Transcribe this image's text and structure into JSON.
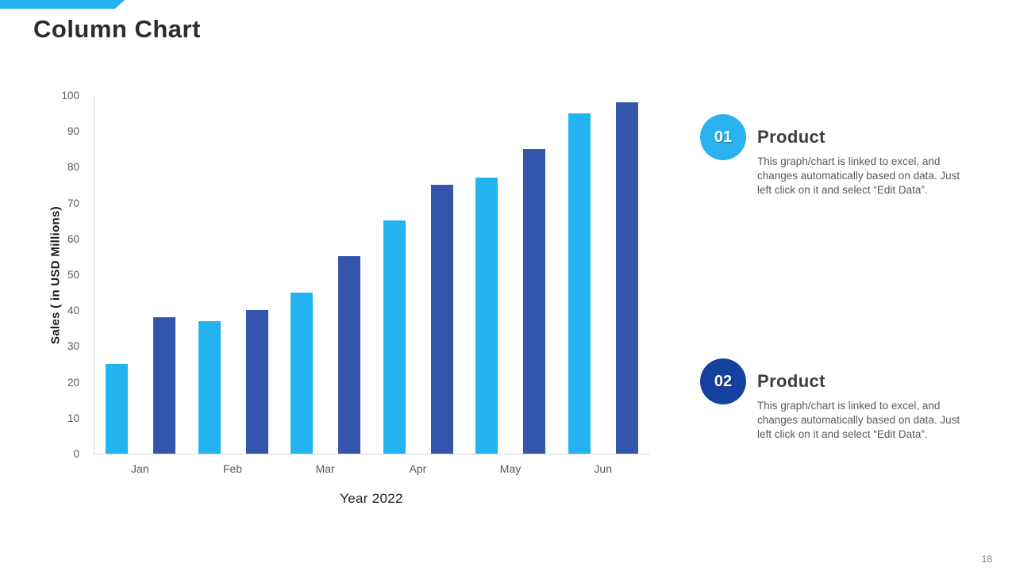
{
  "slide": {
    "title": "Column Chart",
    "page_number": "18",
    "accent_color": "#22B2EE"
  },
  "chart_data": {
    "type": "bar",
    "title": "",
    "categories": [
      "Jan",
      "Feb",
      "Mar",
      "Apr",
      "May",
      "Jun"
    ],
    "series": [
      {
        "name": "Product 01",
        "color": "#22B3F0",
        "values": [
          25,
          37,
          45,
          65,
          77,
          95
        ]
      },
      {
        "name": "Product 02",
        "color": "#3356AC",
        "values": [
          38,
          40,
          55,
          75,
          85,
          98
        ]
      }
    ],
    "xlabel": "Year 2022",
    "ylabel": "Sales ( in USD Millions)",
    "ylim": [
      0,
      100
    ],
    "ytick_step": 10,
    "grid": false,
    "legend_position": "none"
  },
  "info_items": [
    {
      "number": "01",
      "color": "#29B2EF",
      "title": "Product",
      "body": "This graph/chart is linked to excel, and changes automatically based on data. Just left click on it and select “Edit Data”."
    },
    {
      "number": "02",
      "color": "#15419F",
      "title": "Product",
      "body": "This graph/chart is linked to excel, and changes automatically based on data. Just left click on it and select “Edit Data”."
    }
  ]
}
